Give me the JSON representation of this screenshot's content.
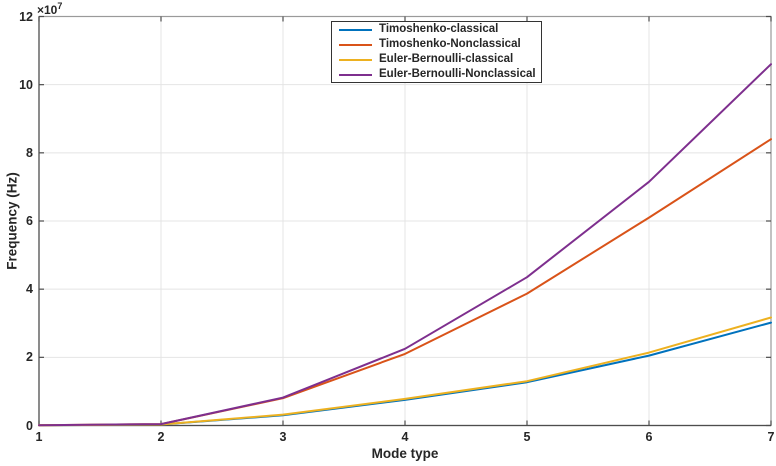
{
  "figure": {
    "y_scale_base": "×10",
    "y_scale_exponent": "7"
  },
  "colors": {
    "background": "#ffffff",
    "grid": "#e4e4e4",
    "box_border": "#9a9a9a",
    "axis_line": "#4d4d4d",
    "tick_mark": "#4d4d4d",
    "text": "#262626",
    "legend_border": "#333333"
  },
  "chart_data": {
    "type": "line",
    "title": "",
    "xlabel": "Mode type",
    "ylabel": "Frequency (Hz)",
    "y_scale_note": "×10^7",
    "x": [
      1,
      2,
      3,
      4,
      5,
      6,
      7
    ],
    "xlim": [
      1,
      7
    ],
    "ylim": [
      0,
      12
    ],
    "x_ticks": [
      "1",
      "2",
      "3",
      "4",
      "5",
      "6",
      "7"
    ],
    "y_ticks": [
      "0",
      "2",
      "4",
      "6",
      "8",
      "10",
      "12"
    ],
    "grid": true,
    "legend_position": "top-center-inside",
    "series": [
      {
        "name": "Timoshenko-classical",
        "slug": "timoshenko-classical",
        "color": "#0072BD",
        "values": [
          0.005,
          0.03,
          0.3,
          0.75,
          1.27,
          2.05,
          3.02
        ]
      },
      {
        "name": "Timoshenko-Nonclassical",
        "slug": "timoshenko-nonclassical",
        "color": "#D95319",
        "values": [
          0.005,
          0.04,
          0.8,
          2.1,
          3.87,
          6.1,
          8.4
        ]
      },
      {
        "name": "Euler-Bernoulli-classical",
        "slug": "euler-bernoulli-classical",
        "color": "#EDB120",
        "values": [
          0.005,
          0.03,
          0.32,
          0.78,
          1.3,
          2.14,
          3.17
        ]
      },
      {
        "name": "Euler-Bernoulli-Nonclassical",
        "slug": "euler-bernoulli-nonclassical",
        "color": "#7E2F8E",
        "values": [
          0.005,
          0.04,
          0.82,
          2.25,
          4.35,
          7.15,
          10.6
        ]
      }
    ]
  }
}
